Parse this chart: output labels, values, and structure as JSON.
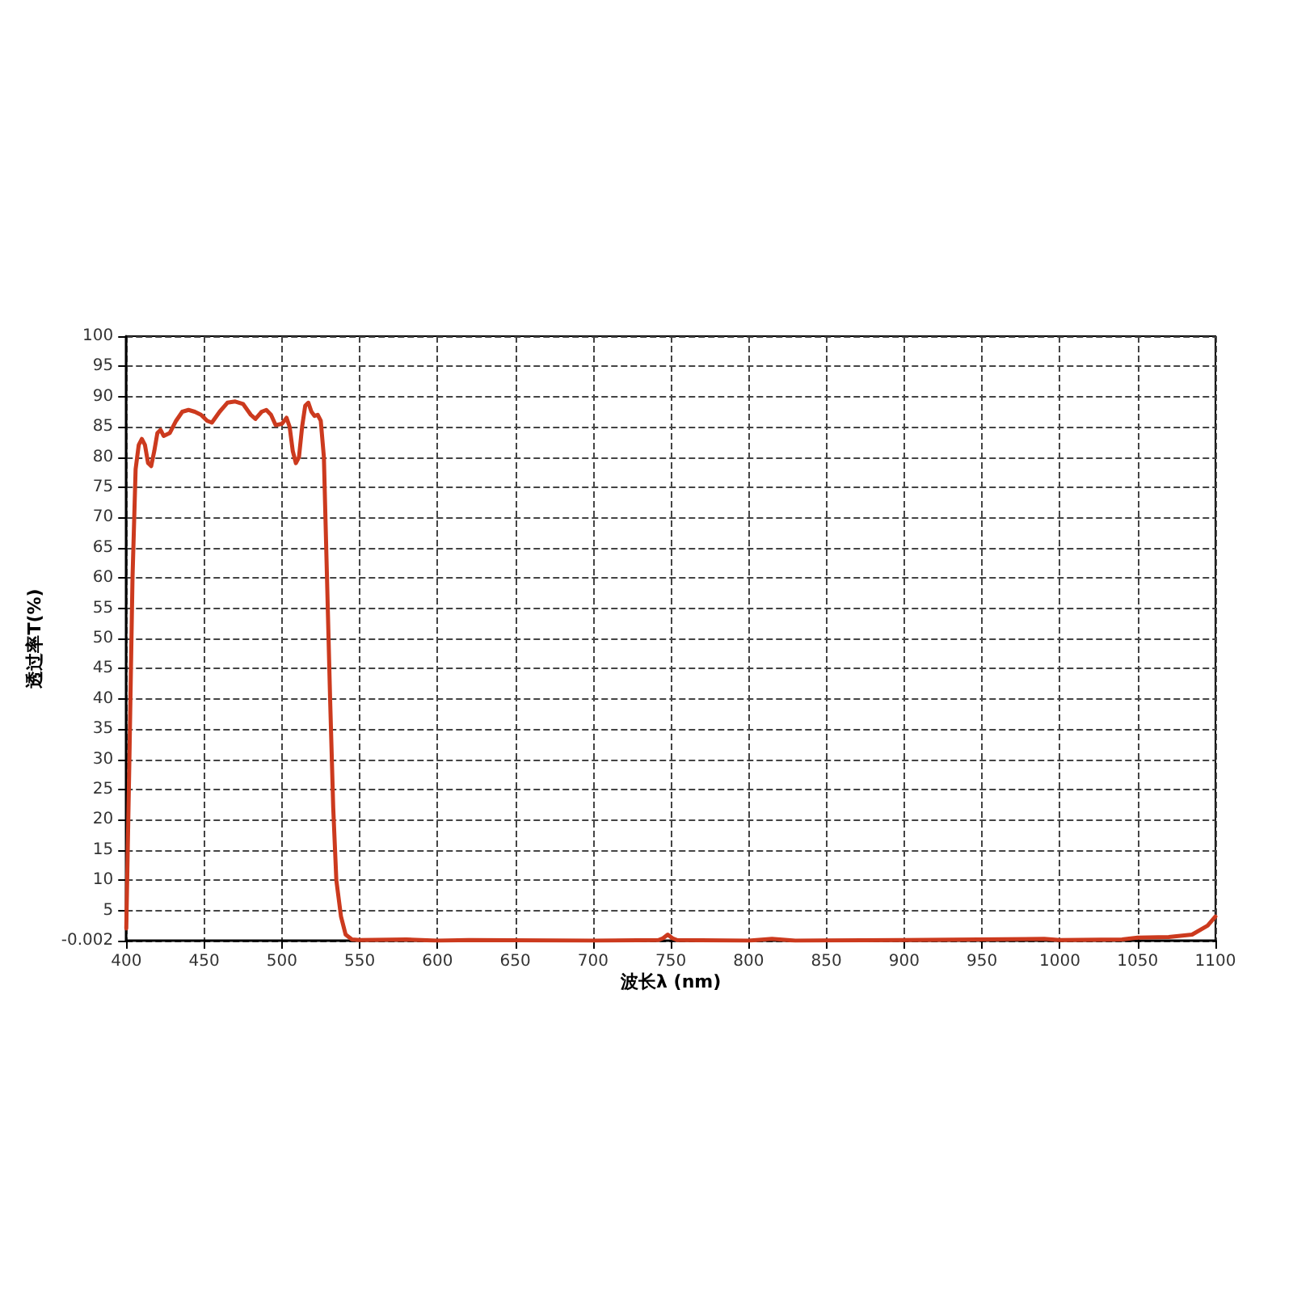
{
  "chart_data": {
    "type": "line",
    "xlabel": "波长λ (nm)",
    "ylabel": "透过率T(%)",
    "xlim": [
      400,
      1100
    ],
    "xticks": [
      400,
      450,
      500,
      550,
      600,
      650,
      700,
      750,
      800,
      850,
      900,
      950,
      1000,
      1050,
      1100
    ],
    "ylim": [
      -0.002,
      100
    ],
    "yticks": [
      -0.002,
      5,
      10,
      15,
      20,
      25,
      30,
      35,
      40,
      45,
      50,
      55,
      60,
      65,
      70,
      75,
      80,
      85,
      90,
      95,
      100
    ],
    "grid": true,
    "marker": "none",
    "line_style": "solid",
    "series": [
      {
        "color": "#cc3a1e",
        "x": [
          400,
          402,
          404,
          406,
          408,
          410,
          412,
          414,
          416,
          418,
          420,
          422,
          424,
          428,
          432,
          436,
          440,
          444,
          448,
          452,
          455,
          460,
          465,
          470,
          475,
          480,
          483,
          487,
          490,
          493,
          496,
          500,
          503,
          505,
          507,
          509,
          511,
          513,
          515,
          517,
          519,
          521,
          523,
          525,
          527,
          529,
          531,
          533,
          535,
          538,
          541,
          545,
          550,
          580,
          600,
          620,
          700,
          742,
          745,
          748,
          751,
          754,
          800,
          815,
          830,
          900,
          990,
          1000,
          1040,
          1050,
          1070,
          1085,
          1095,
          1100
        ],
        "values": [
          2,
          30,
          60,
          78,
          82,
          83,
          82,
          79,
          78.5,
          81,
          84,
          84.5,
          83.5,
          84,
          86,
          87.5,
          87.8,
          87.5,
          87,
          86,
          85.7,
          87.5,
          89,
          89.2,
          88.8,
          87,
          86.3,
          87.5,
          87.8,
          87,
          85.3,
          85.5,
          86.5,
          85,
          81,
          79,
          80,
          85,
          88.5,
          89,
          87.5,
          86.8,
          87,
          86,
          80,
          60,
          40,
          22,
          10,
          4,
          1,
          0.2,
          0.1,
          0.2,
          0,
          0.1,
          0,
          0.1,
          0.4,
          1,
          0.4,
          0.1,
          0,
          0.3,
          0,
          0.1,
          0.3,
          0.1,
          0.2,
          0.5,
          0.6,
          1,
          2.5,
          4
        ]
      }
    ]
  }
}
